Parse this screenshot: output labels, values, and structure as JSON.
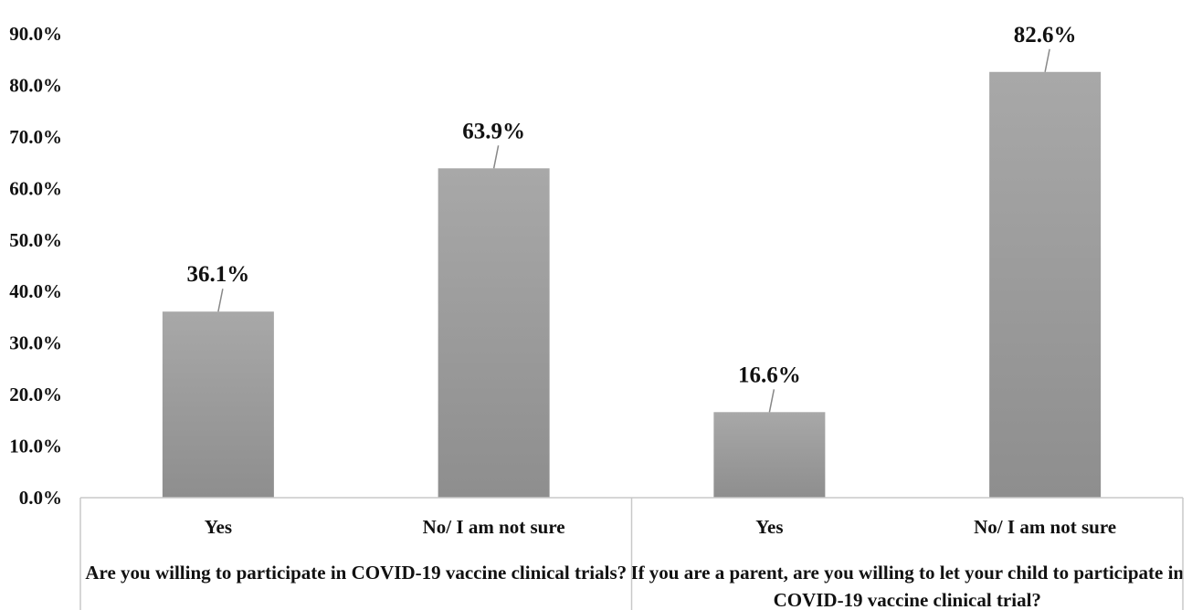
{
  "chart_data": {
    "type": "bar",
    "ylim": [
      0,
      90
    ],
    "y_ticks": [
      "0.0%",
      "10.0%",
      "20.0%",
      "30.0%",
      "40.0%",
      "50.0%",
      "60.0%",
      "70.0%",
      "80.0%",
      "90.0%"
    ],
    "groups": [
      {
        "label_lines": [
          "Are you willing to participate in COVID-19 vaccine clinical trials?"
        ],
        "bars": [
          {
            "category": "Yes",
            "value": 36.1,
            "label": "36.1%"
          },
          {
            "category": "No/ I am not sure",
            "value": 63.9,
            "label": "63.9%"
          }
        ]
      },
      {
        "label_lines": [
          "If you are a parent, are you willing to let your child to participate in",
          "COVID-19 vaccine clinical trial?"
        ],
        "bars": [
          {
            "category": "Yes",
            "value": 16.6,
            "label": "16.6%"
          },
          {
            "category": "No/ I am not sure",
            "value": 82.6,
            "label": "82.6%"
          }
        ]
      }
    ],
    "grid": false,
    "legend": "none",
    "bar_color": "#a3a3a3"
  }
}
